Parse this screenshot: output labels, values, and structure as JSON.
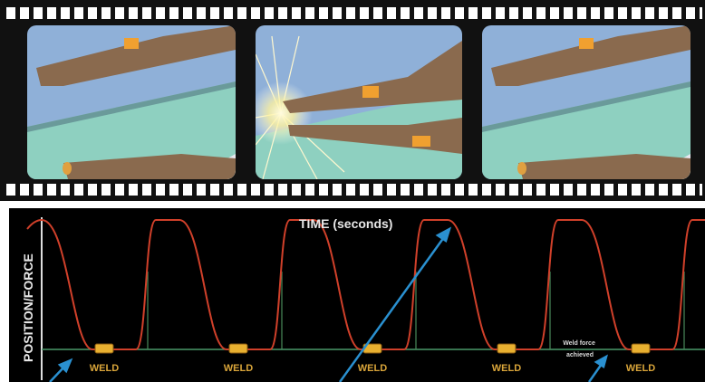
{
  "labels": {
    "time_axis": "TIME (seconds)",
    "position_axis": "POSITION/FORCE",
    "weld_labels": [
      "WELD",
      "WELD",
      "WELD",
      "WELD",
      "WELD"
    ],
    "annotation": [
      "Weld force",
      "achieved"
    ]
  }
}
